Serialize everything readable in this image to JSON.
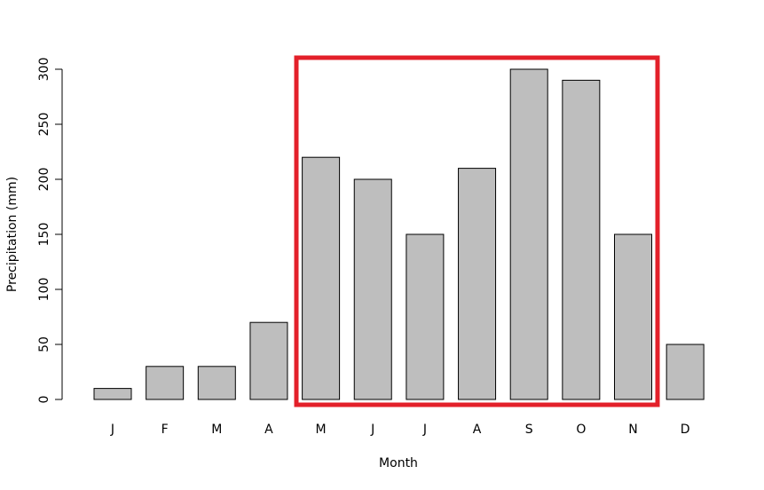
{
  "chart_data": {
    "type": "bar",
    "x_label": "Month",
    "y_label": "Precipitation (mm)",
    "categories": [
      "J",
      "F",
      "M",
      "A",
      "M",
      "J",
      "J",
      "A",
      "S",
      "O",
      "N",
      "D"
    ],
    "values": [
      10,
      30,
      30,
      70,
      220,
      200,
      150,
      210,
      300,
      290,
      150,
      50
    ],
    "color": "#bebebe",
    "ylim": [
      0,
      300
    ],
    "yticks": [
      0,
      50,
      100,
      150,
      200,
      250,
      300
    ],
    "grid": false
  }
}
